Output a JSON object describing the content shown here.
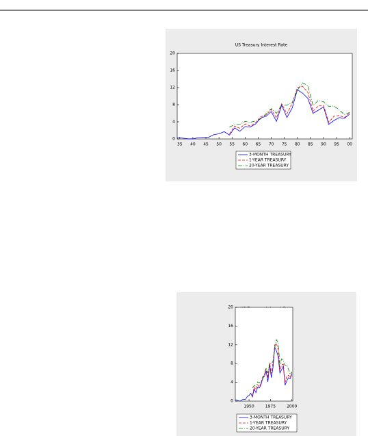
{
  "chart_data": [
    {
      "type": "line",
      "title": "US Treasury Interest Rate",
      "x": [
        1934,
        1936,
        1938,
        1940,
        1942,
        1944,
        1946,
        1948,
        1950,
        1952,
        1954,
        1956,
        1958,
        1960,
        1962,
        1964,
        1966,
        1968,
        1970,
        1972,
        1974,
        1976,
        1978,
        1980,
        1982,
        1984,
        1986,
        1988,
        1990,
        1992,
        1994,
        1996,
        1998,
        2000
      ],
      "series": [
        {
          "name": "3-MONTH TREASURY",
          "color": "#0000ff",
          "dash": "none",
          "values": [
            0.3,
            0.2,
            0.05,
            0.01,
            0.3,
            0.38,
            0.38,
            1.0,
            1.2,
            1.7,
            0.9,
            2.6,
            1.8,
            2.9,
            2.8,
            3.5,
            4.9,
            5.3,
            6.4,
            4.1,
            7.9,
            5.0,
            7.2,
            11.5,
            10.7,
            9.5,
            6.0,
            6.7,
            7.5,
            3.4,
            4.3,
            5.0,
            4.8,
            5.8
          ]
        },
        {
          "name": "1-YEAR TREASURY",
          "color": "#ff0000",
          "dash": "4 2",
          "values": [
            null,
            null,
            null,
            null,
            null,
            null,
            null,
            null,
            null,
            null,
            1.2,
            3.0,
            2.5,
            3.5,
            3.0,
            3.8,
            5.2,
            5.6,
            6.9,
            4.9,
            8.2,
            5.9,
            8.3,
            12.0,
            12.3,
            10.9,
            6.5,
            7.7,
            7.9,
            3.9,
            5.3,
            5.5,
            5.0,
            6.1
          ]
        },
        {
          "name": "20-YEAR TREASURY",
          "color": "#008000",
          "dash": "6 2 1 2",
          "values": [
            null,
            null,
            null,
            null,
            null,
            null,
            null,
            null,
            null,
            null,
            2.8,
            3.3,
            3.4,
            4.1,
            3.9,
            4.2,
            4.7,
            5.9,
            7.1,
            6.0,
            8.0,
            7.9,
            8.5,
            11.4,
            13.1,
            12.5,
            7.8,
            9.0,
            8.7,
            7.6,
            7.7,
            6.8,
            5.7,
            6.2
          ]
        }
      ],
      "xlim": [
        1934,
        2001
      ],
      "ylim": [
        0,
        20
      ],
      "xticks": [
        {
          "value": 1935,
          "label": "35"
        },
        {
          "value": 1940,
          "label": "40"
        },
        {
          "value": 1945,
          "label": "45"
        },
        {
          "value": 1950,
          "label": "50"
        },
        {
          "value": 1955,
          "label": "55"
        },
        {
          "value": 1960,
          "label": "60"
        },
        {
          "value": 1965,
          "label": "65"
        },
        {
          "value": 1970,
          "label": "70"
        },
        {
          "value": 1975,
          "label": "75"
        },
        {
          "value": 1980,
          "label": "80"
        },
        {
          "value": 1985,
          "label": "85"
        },
        {
          "value": 1990,
          "label": "90"
        },
        {
          "value": 1995,
          "label": "95"
        },
        {
          "value": 2000,
          "label": "00"
        }
      ],
      "yticks": [
        0,
        4,
        8,
        12,
        16,
        20
      ],
      "legend": "bottom"
    },
    {
      "type": "line",
      "title": "US Treasury Interest Rate",
      "x": [
        1934,
        1936,
        1938,
        1940,
        1942,
        1944,
        1946,
        1948,
        1950,
        1952,
        1954,
        1956,
        1958,
        1960,
        1962,
        1964,
        1966,
        1968,
        1970,
        1972,
        1974,
        1976,
        1978,
        1980,
        1982,
        1984,
        1986,
        1988,
        1990,
        1992,
        1994,
        1996,
        1998,
        2000
      ],
      "series": [
        {
          "name": "3-MONTH TREASURY",
          "color": "#0000ff",
          "dash": "none",
          "values": [
            0.3,
            0.2,
            0.05,
            0.01,
            0.3,
            0.38,
            0.38,
            1.0,
            1.2,
            1.7,
            0.9,
            2.6,
            1.8,
            2.9,
            2.8,
            3.5,
            4.9,
            5.3,
            6.4,
            4.1,
            7.9,
            5.0,
            7.2,
            11.5,
            10.7,
            9.5,
            6.0,
            6.7,
            7.5,
            3.4,
            4.3,
            5.0,
            4.8,
            5.8
          ]
        },
        {
          "name": "1-YEAR TREASURY",
          "color": "#ff0000",
          "dash": "4 2",
          "values": [
            null,
            null,
            null,
            null,
            null,
            null,
            null,
            null,
            null,
            null,
            1.2,
            3.0,
            2.5,
            3.5,
            3.0,
            3.8,
            5.2,
            5.6,
            6.9,
            4.9,
            8.2,
            5.9,
            8.3,
            12.0,
            12.3,
            10.9,
            6.5,
            7.7,
            7.9,
            3.9,
            5.3,
            5.5,
            5.0,
            6.1
          ]
        },
        {
          "name": "20-YEAR TREASURY",
          "color": "#008000",
          "dash": "6 2 1 2",
          "values": [
            null,
            null,
            null,
            null,
            null,
            null,
            null,
            null,
            null,
            null,
            2.8,
            3.3,
            3.4,
            4.1,
            3.9,
            4.2,
            4.7,
            5.9,
            7.1,
            6.0,
            8.0,
            7.9,
            8.5,
            11.4,
            13.1,
            12.5,
            7.8,
            9.0,
            8.7,
            7.6,
            7.7,
            6.8,
            5.7,
            6.2
          ]
        }
      ],
      "xlim": [
        1934,
        2001
      ],
      "ylim": [
        0,
        20
      ],
      "xticks": [
        1950,
        1975,
        2000
      ],
      "yticks": [
        0,
        4,
        8,
        12,
        16,
        20
      ],
      "legend": "bottom"
    }
  ]
}
